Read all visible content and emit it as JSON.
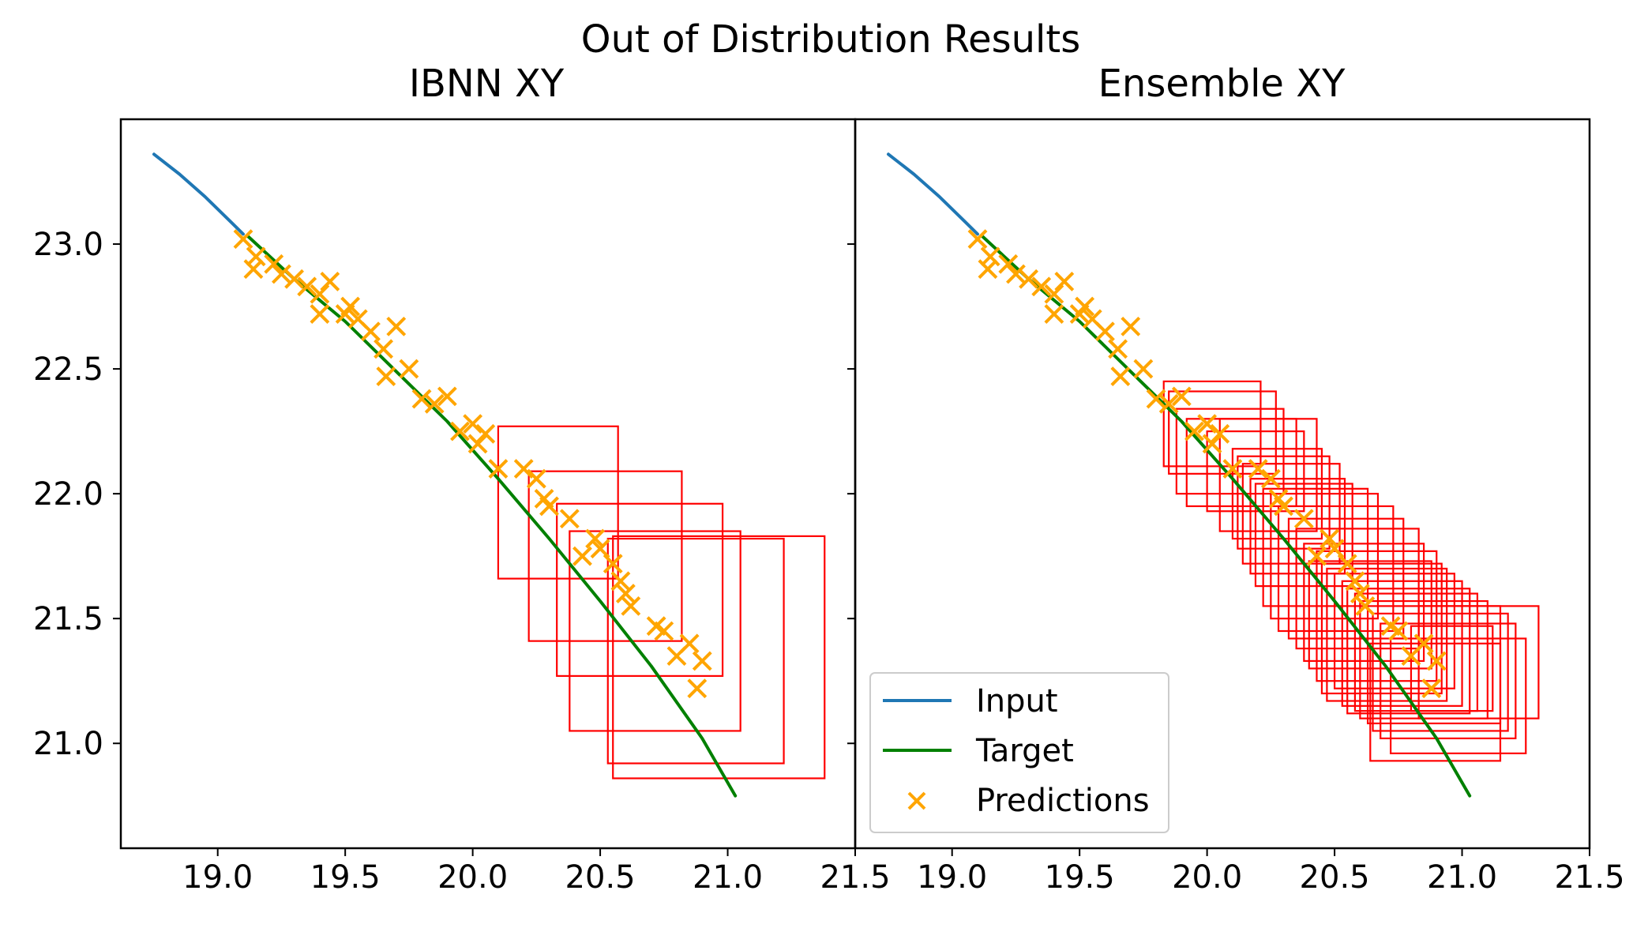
{
  "figure_title": "Out of Distribution Results",
  "chart_data": [
    {
      "type": "line",
      "title": "IBNN XY",
      "xlabel": "",
      "ylabel": "",
      "xlim": [
        18.62,
        21.5
      ],
      "ylim": [
        20.58,
        23.5
      ],
      "xticks": [
        "19.0",
        "19.5",
        "20.0",
        "20.5",
        "21.0",
        "21.5"
      ],
      "yticks": [
        "21.0",
        "21.5",
        "22.0",
        "22.5",
        "23.0"
      ],
      "show_y_tick_labels": true,
      "legend": false,
      "series": [
        {
          "name": "Input",
          "kind": "line",
          "color": "#1f77b4",
          "x": [
            18.75,
            18.85,
            18.95,
            19.05,
            19.1
          ],
          "y": [
            23.36,
            23.28,
            23.19,
            23.09,
            23.04
          ]
        },
        {
          "name": "Target",
          "kind": "line",
          "color": "#008000",
          "x": [
            19.12,
            19.3,
            19.5,
            19.7,
            19.9,
            20.1,
            20.3,
            20.5,
            20.7,
            20.9,
            21.03
          ],
          "y": [
            23.03,
            22.86,
            22.69,
            22.49,
            22.29,
            22.06,
            21.82,
            21.57,
            21.31,
            21.02,
            20.79
          ]
        },
        {
          "name": "Predictions",
          "kind": "scatter",
          "color": "#ffa500",
          "x": [
            19.1,
            19.15,
            19.14,
            19.22,
            19.25,
            19.3,
            19.35,
            19.4,
            19.44,
            19.4,
            19.52,
            19.55,
            19.5,
            19.6,
            19.65,
            19.7,
            19.66,
            19.75,
            19.8,
            19.85,
            19.9,
            19.95,
            20.0,
            20.02,
            20.05,
            20.1,
            20.2,
            20.25,
            20.28,
            20.3,
            20.38,
            20.43,
            20.48,
            20.5,
            20.55,
            20.58,
            20.62,
            20.6,
            20.72,
            20.75,
            20.8,
            20.85,
            20.9,
            20.88
          ],
          "y": [
            23.02,
            22.95,
            22.9,
            22.92,
            22.88,
            22.86,
            22.83,
            22.8,
            22.85,
            22.72,
            22.75,
            22.7,
            22.72,
            22.65,
            22.58,
            22.67,
            22.47,
            22.5,
            22.38,
            22.36,
            22.39,
            22.25,
            22.28,
            22.2,
            22.24,
            22.1,
            22.1,
            22.06,
            21.98,
            21.95,
            21.9,
            21.75,
            21.82,
            21.78,
            21.72,
            21.65,
            21.55,
            21.6,
            21.47,
            21.45,
            21.35,
            21.4,
            21.33,
            21.22
          ]
        },
        {
          "name": "Boxes",
          "kind": "rect",
          "color": "#ff0000",
          "rects": [
            [
              20.1,
              20.57,
              21.66,
              22.27
            ],
            [
              20.22,
              20.82,
              21.41,
              22.09
            ],
            [
              20.33,
              20.98,
              21.27,
              21.96
            ],
            [
              20.38,
              21.05,
              21.05,
              21.85
            ],
            [
              20.53,
              21.22,
              20.92,
              21.82
            ],
            [
              20.55,
              21.38,
              20.86,
              21.83
            ]
          ]
        }
      ]
    },
    {
      "type": "line",
      "title": "Ensemble XY",
      "xlabel": "",
      "ylabel": "",
      "xlim": [
        18.62,
        21.5
      ],
      "ylim": [
        20.58,
        23.5
      ],
      "xticks": [
        "19.0",
        "19.5",
        "20.0",
        "20.5",
        "21.0",
        "21.5"
      ],
      "yticks": [
        "21.0",
        "21.5",
        "22.0",
        "22.5",
        "23.0"
      ],
      "show_y_tick_labels": false,
      "legend": true,
      "legend_location": "lower-left",
      "legend_entries": [
        "Input",
        "Target",
        "Predictions"
      ],
      "series": [
        {
          "name": "Input",
          "kind": "line",
          "color": "#1f77b4",
          "x": [
            18.75,
            18.85,
            18.95,
            19.05,
            19.1
          ],
          "y": [
            23.36,
            23.28,
            23.19,
            23.09,
            23.04
          ]
        },
        {
          "name": "Target",
          "kind": "line",
          "color": "#008000",
          "x": [
            19.12,
            19.3,
            19.5,
            19.7,
            19.9,
            20.1,
            20.3,
            20.5,
            20.7,
            20.9,
            21.03
          ],
          "y": [
            23.03,
            22.86,
            22.69,
            22.49,
            22.29,
            22.06,
            21.82,
            21.57,
            21.31,
            21.02,
            20.79
          ]
        },
        {
          "name": "Predictions",
          "kind": "scatter",
          "color": "#ffa500",
          "x": [
            19.1,
            19.15,
            19.14,
            19.22,
            19.25,
            19.3,
            19.35,
            19.4,
            19.44,
            19.4,
            19.52,
            19.55,
            19.5,
            19.6,
            19.65,
            19.7,
            19.66,
            19.75,
            19.8,
            19.85,
            19.9,
            19.95,
            20.0,
            20.02,
            20.05,
            20.1,
            20.2,
            20.25,
            20.28,
            20.3,
            20.38,
            20.43,
            20.48,
            20.5,
            20.55,
            20.58,
            20.62,
            20.6,
            20.72,
            20.75,
            20.8,
            20.85,
            20.9,
            20.88
          ],
          "y": [
            23.02,
            22.95,
            22.9,
            22.92,
            22.88,
            22.86,
            22.83,
            22.8,
            22.85,
            22.72,
            22.75,
            22.7,
            22.72,
            22.65,
            22.58,
            22.67,
            22.47,
            22.5,
            22.38,
            22.36,
            22.39,
            22.25,
            22.28,
            22.2,
            22.24,
            22.1,
            22.1,
            22.06,
            21.98,
            21.95,
            21.9,
            21.75,
            21.82,
            21.78,
            21.72,
            21.65,
            21.55,
            21.6,
            21.47,
            21.45,
            21.35,
            21.4,
            21.33,
            21.22
          ]
        },
        {
          "name": "Boxes",
          "kind": "rect",
          "color": "#ff0000",
          "rects": [
            [
              19.83,
              20.21,
              22.11,
              22.45
            ],
            [
              19.85,
              20.27,
              22.08,
              22.41
            ],
            [
              19.88,
              20.3,
              22.0,
              22.34
            ],
            [
              19.92,
              20.35,
              21.95,
              22.3
            ],
            [
              20.0,
              20.38,
              21.93,
              22.25
            ],
            [
              20.05,
              20.43,
              21.85,
              22.3
            ],
            [
              20.1,
              20.45,
              21.82,
              22.18
            ],
            [
              20.12,
              20.48,
              21.78,
              22.15
            ],
            [
              20.14,
              20.52,
              21.72,
              22.12
            ],
            [
              20.17,
              20.54,
              21.68,
              22.06
            ],
            [
              20.19,
              20.57,
              21.63,
              22.04
            ],
            [
              20.22,
              20.63,
              21.55,
              22.02
            ],
            [
              20.25,
              20.67,
              21.5,
              22.0
            ],
            [
              20.28,
              20.73,
              21.45,
              21.95
            ],
            [
              20.32,
              20.77,
              21.42,
              21.9
            ],
            [
              20.35,
              20.83,
              21.38,
              21.86
            ],
            [
              20.38,
              20.85,
              21.33,
              21.8
            ],
            [
              20.4,
              20.88,
              21.3,
              21.73
            ],
            [
              20.43,
              20.9,
              21.25,
              21.77
            ],
            [
              20.45,
              20.92,
              21.2,
              21.72
            ],
            [
              20.47,
              20.94,
              21.17,
              21.7
            ],
            [
              20.5,
              20.97,
              21.22,
              21.68
            ],
            [
              20.53,
              21.0,
              21.15,
              21.65
            ],
            [
              20.55,
              21.03,
              21.12,
              21.62
            ],
            [
              20.58,
              21.06,
              21.13,
              21.6
            ],
            [
              20.6,
              21.1,
              21.1,
              21.57
            ],
            [
              20.63,
              21.15,
              21.08,
              21.55
            ],
            [
              20.65,
              21.18,
              21.05,
              21.52
            ],
            [
              20.68,
              21.21,
              21.02,
              21.48
            ],
            [
              20.72,
              21.25,
              20.96,
              21.42
            ],
            [
              20.8,
              21.12,
              21.13,
              21.47
            ],
            [
              20.83,
              21.3,
              21.1,
              21.55
            ],
            [
              20.64,
              21.15,
              20.93,
              21.4
            ]
          ]
        }
      ]
    }
  ]
}
